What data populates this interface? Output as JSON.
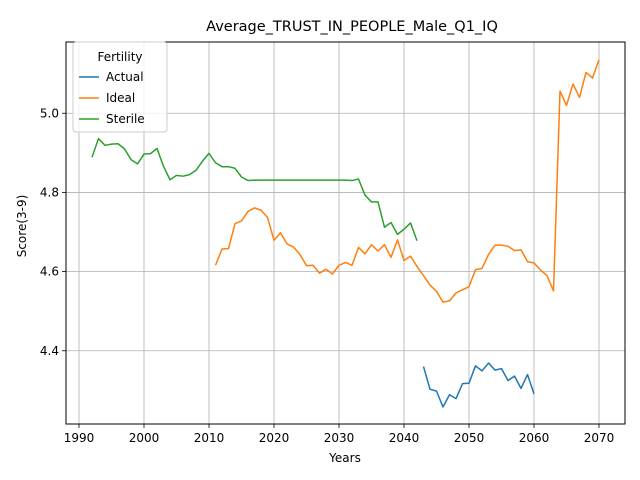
{
  "chart_data": {
    "type": "line",
    "title": "Average_TRUST_IN_PEOPLE_Male_Q1_IQ",
    "xlabel": "Years",
    "ylabel": "Score(3-9)",
    "xlim": [
      1988,
      2074
    ],
    "ylim": [
      4.215,
      5.18
    ],
    "xticks": [
      1990,
      2000,
      2010,
      2020,
      2030,
      2040,
      2050,
      2060,
      2070
    ],
    "yticks": [
      4.4,
      4.6,
      4.8,
      5.0
    ],
    "ytick_labels": [
      "4.4",
      "4.6",
      "4.8",
      "5.0"
    ],
    "grid": true,
    "legend": {
      "title": "Fertility",
      "position": "top-left"
    },
    "series": [
      {
        "name": "Actual",
        "color": "#1f77b4",
        "x": [
          2043,
          2044,
          2045,
          2046,
          2047,
          2048,
          2049,
          2050,
          2051,
          2052,
          2053,
          2054,
          2055,
          2056,
          2057,
          2058,
          2059,
          2060
        ],
        "y": [
          4.36,
          4.303,
          4.298,
          4.258,
          4.289,
          4.279,
          4.317,
          4.318,
          4.362,
          4.349,
          4.369,
          4.351,
          4.355,
          4.325,
          4.336,
          4.305,
          4.34,
          4.291
        ]
      },
      {
        "name": "Ideal",
        "color": "#ff7f0e",
        "x": [
          2011,
          2012,
          2013,
          2014,
          2015,
          2016,
          2017,
          2018,
          2019,
          2020,
          2021,
          2022,
          2023,
          2024,
          2025,
          2026,
          2027,
          2028,
          2029,
          2030,
          2031,
          2032,
          2033,
          2034,
          2035,
          2036,
          2037,
          2038,
          2039,
          2040,
          2041,
          2042,
          2043,
          2044,
          2045,
          2046,
          2047,
          2048,
          2049,
          2050,
          2051,
          2052,
          2053,
          2054,
          2055,
          2056,
          2057,
          2058,
          2059,
          2060,
          2061,
          2062,
          2063,
          2064,
          2065,
          2066,
          2067,
          2068,
          2069,
          2070
        ],
        "y": [
          4.616,
          4.657,
          4.658,
          4.721,
          4.728,
          4.752,
          4.761,
          4.755,
          4.737,
          4.679,
          4.698,
          4.67,
          4.662,
          4.643,
          4.615,
          4.616,
          4.596,
          4.606,
          4.594,
          4.616,
          4.623,
          4.616,
          4.661,
          4.645,
          4.668,
          4.652,
          4.668,
          4.636,
          4.68,
          4.628,
          4.639,
          4.613,
          4.59,
          4.566,
          4.55,
          4.523,
          4.526,
          4.546,
          4.554,
          4.562,
          4.605,
          4.608,
          4.643,
          4.667,
          4.667,
          4.664,
          4.653,
          4.655,
          4.625,
          4.622,
          4.604,
          4.59,
          4.551,
          5.056,
          5.02,
          5.074,
          5.04,
          5.103,
          5.089,
          5.135
        ]
      },
      {
        "name": "Sterile",
        "color": "#2ca02c",
        "x": [
          1992,
          1993,
          1994,
          1995,
          1996,
          1997,
          1998,
          1999,
          2000,
          2001,
          2002,
          2003,
          2004,
          2005,
          2006,
          2007,
          2008,
          2009,
          2010,
          2011,
          2012,
          2013,
          2014,
          2015,
          2016,
          2017,
          2018,
          2019,
          2020,
          2021,
          2022,
          2023,
          2024,
          2025,
          2026,
          2027,
          2028,
          2029,
          2030,
          2031,
          2032,
          2033,
          2034,
          2035,
          2036,
          2037,
          2038,
          2039,
          2040,
          2041,
          2042
        ],
        "y": [
          4.889,
          4.936,
          4.919,
          4.922,
          4.923,
          4.91,
          4.883,
          4.872,
          4.897,
          4.898,
          4.911,
          4.866,
          4.832,
          4.843,
          4.841,
          4.845,
          4.856,
          4.879,
          4.899,
          4.875,
          4.865,
          4.865,
          4.861,
          4.839,
          4.83,
          4.831,
          4.831,
          4.831,
          4.831,
          4.831,
          4.831,
          4.831,
          4.831,
          4.831,
          4.831,
          4.831,
          4.831,
          4.831,
          4.831,
          4.831,
          4.83,
          4.834,
          4.793,
          4.776,
          4.776,
          4.712,
          4.724,
          4.694,
          4.707,
          4.723,
          4.678
        ]
      }
    ]
  }
}
